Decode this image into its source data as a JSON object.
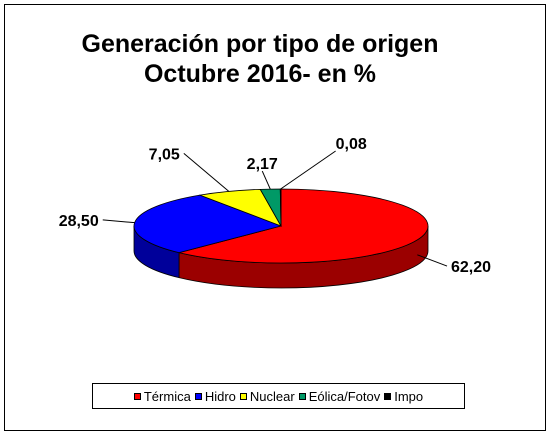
{
  "chart_data": {
    "type": "pie",
    "title": "Generación por tipo de origen",
    "subtitle": "Octubre 2016- en %",
    "slices": [
      {
        "label": "Térmica",
        "value": 62.2,
        "display": "62,20",
        "color": "#ff0000",
        "side": "#9b0000"
      },
      {
        "label": "Hidro",
        "value": 28.5,
        "display": "28,50",
        "color": "#0000ff",
        "side": "#00009a"
      },
      {
        "label": "Nuclear",
        "value": 7.05,
        "display": "7,05",
        "color": "#ffff00",
        "side": "#a8a800"
      },
      {
        "label": "Eólica/Fotov",
        "value": 2.17,
        "display": "2,17",
        "color": "#009966",
        "side": "#005c3d"
      },
      {
        "label": "Impo",
        "value": 0.08,
        "display": "0,08",
        "color": "#000000",
        "side": "#000000"
      }
    ],
    "legend_position": "bottom"
  }
}
